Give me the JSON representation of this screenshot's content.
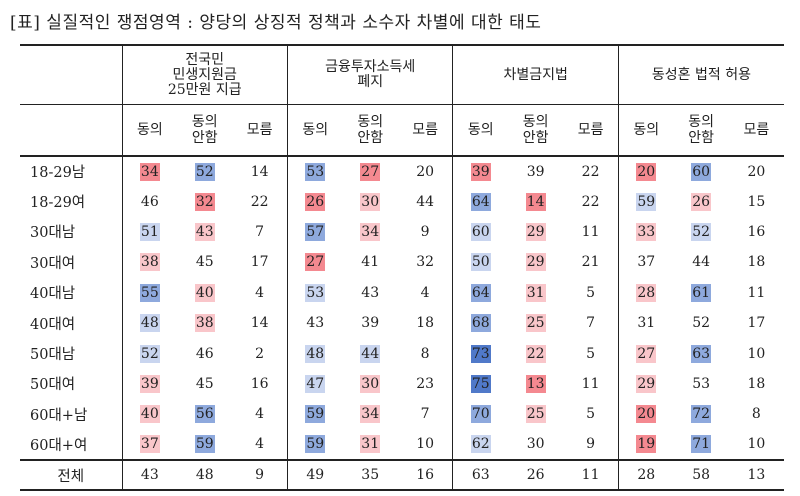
{
  "caption": "[표] 실질적인 쟁점영역 : 양당의 상징적 정책과 소수자 차별에 대한 태도",
  "groups": [
    {
      "title": "전국민\n민생지원금\n25만원 지급"
    },
    {
      "title": "금융투자소득세\n폐지"
    },
    {
      "title": "차별금지법"
    },
    {
      "title": "동성혼 법적 허용"
    }
  ],
  "subheaders": [
    "동의",
    "동의\n안함",
    "모름"
  ],
  "colors": {
    "red_strong": "#f0525d",
    "red_medium": "#f48990",
    "red_light": "#f9c6ca",
    "blue_strong": "#5079c9",
    "blue_medium": "#8ea9dd",
    "blue_light": "#c9d5ef"
  },
  "rows": [
    {
      "label": "18-29남",
      "values": [
        "34",
        "52",
        "14",
        "53",
        "27",
        "20",
        "39",
        "39",
        "22",
        "20",
        "60",
        "20"
      ],
      "shades": [
        "rm",
        "bm",
        "",
        "bm",
        "rm",
        "",
        "rm",
        "",
        "",
        "rm",
        "bm",
        ""
      ]
    },
    {
      "label": "18-29여",
      "values": [
        "46",
        "32",
        "22",
        "26",
        "30",
        "44",
        "64",
        "14",
        "22",
        "59",
        "26",
        "15"
      ],
      "shades": [
        "",
        "rm",
        "",
        "rm",
        "rl",
        "",
        "bm",
        "rm",
        "",
        "bl",
        "rl",
        ""
      ]
    },
    {
      "label": "30대남",
      "values": [
        "51",
        "43",
        "7",
        "57",
        "34",
        "9",
        "60",
        "29",
        "11",
        "33",
        "52",
        "16"
      ],
      "shades": [
        "bl",
        "rl",
        "",
        "bm",
        "rl",
        "",
        "bl",
        "rl",
        "",
        "rl",
        "bl",
        ""
      ]
    },
    {
      "label": "30대여",
      "values": [
        "38",
        "45",
        "17",
        "27",
        "41",
        "32",
        "50",
        "29",
        "21",
        "37",
        "44",
        "18"
      ],
      "shades": [
        "rl",
        "",
        "",
        "rm",
        "",
        "",
        "bl",
        "rl",
        "",
        "",
        "",
        ""
      ]
    },
    {
      "label": "40대남",
      "values": [
        "55",
        "40",
        "4",
        "53",
        "43",
        "4",
        "64",
        "31",
        "5",
        "28",
        "61",
        "11"
      ],
      "shades": [
        "bm",
        "rl",
        "",
        "bl",
        "",
        "",
        "bm",
        "rl",
        "",
        "rl",
        "bm",
        ""
      ]
    },
    {
      "label": "40대여",
      "values": [
        "48",
        "38",
        "14",
        "43",
        "39",
        "18",
        "68",
        "25",
        "7",
        "31",
        "52",
        "17"
      ],
      "shades": [
        "bl",
        "rl",
        "",
        "",
        "",
        "",
        "bm",
        "rl",
        "",
        "",
        "",
        ""
      ]
    },
    {
      "label": "50대남",
      "values": [
        "52",
        "46",
        "2",
        "48",
        "44",
        "8",
        "73",
        "22",
        "5",
        "27",
        "63",
        "10"
      ],
      "shades": [
        "bl",
        "",
        "",
        "bl",
        "bl",
        "",
        "bs",
        "rl",
        "",
        "rl",
        "bm",
        ""
      ]
    },
    {
      "label": "50대여",
      "values": [
        "39",
        "45",
        "16",
        "47",
        "30",
        "23",
        "75",
        "13",
        "11",
        "29",
        "53",
        "18"
      ],
      "shades": [
        "rl",
        "",
        "",
        "bl",
        "rl",
        "",
        "bs",
        "rm",
        "",
        "rl",
        "",
        ""
      ]
    },
    {
      "label": "60대+남",
      "values": [
        "40",
        "56",
        "4",
        "59",
        "34",
        "7",
        "70",
        "25",
        "5",
        "20",
        "72",
        "8"
      ],
      "shades": [
        "rl",
        "bm",
        "",
        "bm",
        "rl",
        "",
        "bm",
        "rl",
        "",
        "rm",
        "bm",
        ""
      ]
    },
    {
      "label": "60대+여",
      "values": [
        "37",
        "59",
        "4",
        "59",
        "31",
        "10",
        "62",
        "30",
        "9",
        "19",
        "71",
        "10"
      ],
      "shades": [
        "rl",
        "bm",
        "",
        "bm",
        "rl",
        "",
        "bl",
        "",
        "",
        "rm",
        "bm",
        ""
      ]
    }
  ],
  "total": {
    "label": "전체",
    "values": [
      "43",
      "48",
      "9",
      "49",
      "35",
      "16",
      "63",
      "26",
      "11",
      "28",
      "58",
      "13"
    ]
  }
}
